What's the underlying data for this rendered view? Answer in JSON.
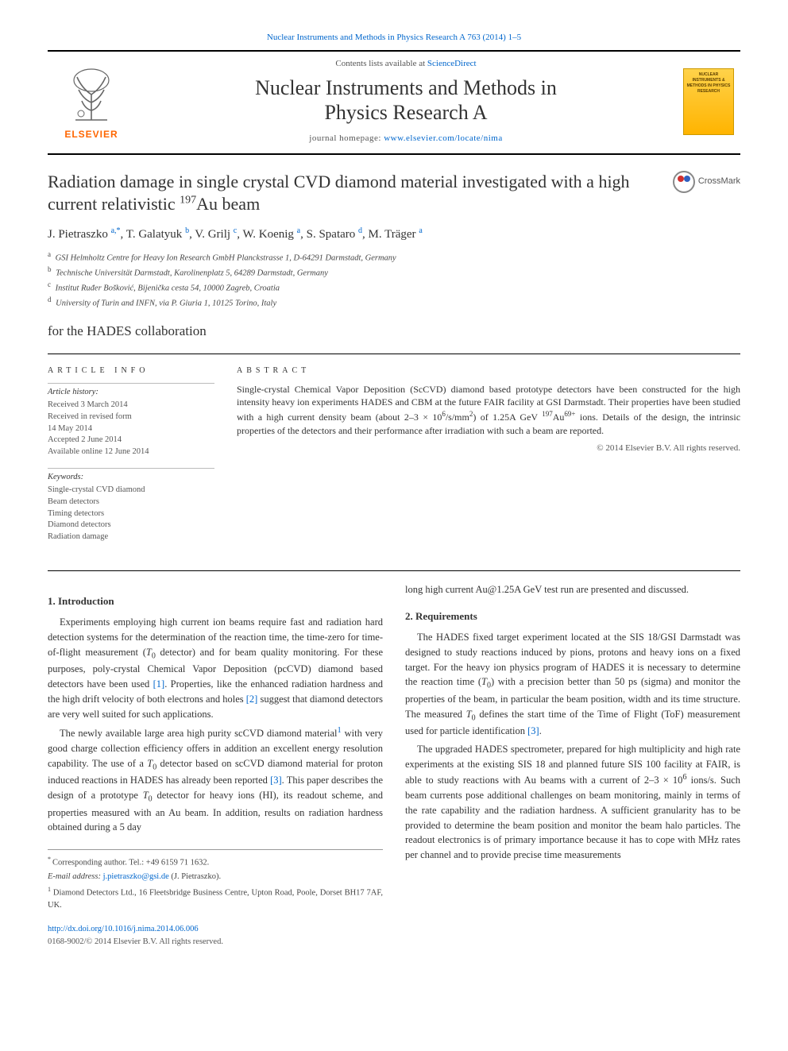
{
  "colors": {
    "link": "#0066cc",
    "text": "#333333",
    "muted": "#555555",
    "rule": "#000000",
    "elsevier_orange": "#ff6600",
    "cover_bg_top": "#ffd24a",
    "cover_bg_bottom": "#ffb400",
    "cover_border": "#cc9900"
  },
  "top_link": {
    "prefix": "",
    "journal": "Nuclear Instruments and Methods in Physics Research A 763 (2014) 1–5"
  },
  "masthead": {
    "contents_prefix": "Contents lists available at ",
    "contents_link": "ScienceDirect",
    "journal_title_line1": "Nuclear Instruments and Methods in",
    "journal_title_line2": "Physics Research A",
    "homepage_prefix": "journal homepage: ",
    "homepage_url": "www.elsevier.com/locate/nima",
    "publisher_word": "ELSEVIER",
    "cover_text": "NUCLEAR INSTRUMENTS & METHODS IN PHYSICS RESEARCH"
  },
  "article": {
    "title_a": "Radiation damage in single crystal CVD diamond material investigated with a high current relativistic ",
    "title_iso": "197",
    "title_b": "Au beam",
    "crossmark": "CrossMark"
  },
  "authors": {
    "line_html_parts": [
      {
        "name": "J. Pietraszko",
        "aff": "a,",
        "star": "*"
      },
      {
        "name": "T. Galatyuk",
        "aff": "b"
      },
      {
        "name": "V. Grilj",
        "aff": "c"
      },
      {
        "name": "W. Koenig",
        "aff": "a"
      },
      {
        "name": "S. Spataro",
        "aff": "d"
      },
      {
        "name": "M. Träger",
        "aff": "a"
      }
    ]
  },
  "affiliations": [
    {
      "key": "a",
      "text": "GSI Helmholtz Centre for Heavy Ion Research GmbH Planckstrasse 1, D-64291 Darmstadt, Germany"
    },
    {
      "key": "b",
      "text": "Technische Universität Darmstadt, Karolinenplatz 5, 64289 Darmstadt, Germany"
    },
    {
      "key": "c",
      "text": "Institut Ruđer Bošković, Bijenička cesta 54, 10000 Zagreb, Croatia"
    },
    {
      "key": "d",
      "text": "University of Turin and INFN, via P. Giuria 1, 10125 Torino, Italy"
    }
  ],
  "collaboration": "for the HADES collaboration",
  "info": {
    "heading": "ARTICLE INFO",
    "history_head": "Article history:",
    "history": [
      "Received 3 March 2014",
      "Received in revised form",
      "14 May 2014",
      "Accepted 2 June 2014",
      "Available online 12 June 2014"
    ],
    "keywords_head": "Keywords:",
    "keywords": [
      "Single-crystal CVD diamond",
      "Beam detectors",
      "Timing detectors",
      "Diamond detectors",
      "Radiation damage"
    ]
  },
  "abstract": {
    "heading": "ABSTRACT",
    "text_a": "Single-crystal Chemical Vapor Deposition (ScCVD) diamond based prototype detectors have been constructed for the high intensity heavy ion experiments HADES and CBM at the future FAIR facility at GSI Darmstadt. Their properties have been studied with a high current density beam (about 2–3 × 10",
    "text_sup1": "6",
    "text_b": "/s/mm",
    "text_sup2": "2",
    "text_c": ") of 1.25A GeV ",
    "text_sup3": "197",
    "text_d": "Au",
    "text_sup4": "69+",
    "text_e": " ions. Details of the design, the intrinsic properties of the detectors and their performance after irradiation with such a beam are reported.",
    "copyright": "© 2014 Elsevier B.V. All rights reserved."
  },
  "body": {
    "sec1_head": "1.  Introduction",
    "sec1_p1_a": "Experiments employing high current ion beams require fast and radiation hard detection systems for the determination of the reaction time, the time-zero for time-of-flight measurement (",
    "sec1_p1_T0": "T",
    "sec1_p1_b": " detector) and for beam quality monitoring. For these purposes, poly-crystal Chemical Vapor Deposition (pcCVD) diamond based detectors have been used ",
    "sec1_p1_cite1": "[1]",
    "sec1_p1_c": ". Properties, like the enhanced radiation hardness and the high drift velocity of both electrons and holes ",
    "sec1_p1_cite2": "[2]",
    "sec1_p1_d": " suggest that diamond detectors are very well suited for such applications.",
    "sec1_p2_a": "The newly available large area high purity scCVD diamond material",
    "sec1_p2_fn": "1",
    "sec1_p2_b": " with very good charge collection efficiency offers in addition an excellent energy resolution capability. The use of a ",
    "sec1_p2_c": " detector based on scCVD diamond material for proton induced reactions in HADES has already been reported ",
    "sec1_p2_cite3": "[3]",
    "sec1_p2_d": ". This paper describes the design of a prototype ",
    "sec1_p2_e": " detector for heavy ions (HI), its readout scheme, and properties measured with an Au beam. In addition, results on radiation hardness obtained during a 5 day",
    "sec1_cont": "long high current Au@1.25A GeV test run are presented and discussed.",
    "sec2_head": "2.  Requirements",
    "sec2_p1_a": "The HADES fixed target experiment located at the SIS 18/GSI Darmstadt was designed to study reactions induced by pions, protons and heavy ions on a fixed target. For the heavy ion physics program of HADES it is necessary to determine the reaction time (",
    "sec2_p1_b": ") with a precision better than 50 ps (sigma) and monitor the properties of the beam, in particular the beam position, width and its time structure. The measured ",
    "sec2_p1_c": " defines the start time of the Time of Flight (ToF) measurement used for particle identification ",
    "sec2_p1_cite3b": "[3]",
    "sec2_p1_d": ".",
    "sec2_p2_a": "The upgraded HADES spectrometer, prepared for high multiplicity and high rate experiments at the existing SIS 18 and planned future SIS 100 facility at FAIR, is able to study reactions with Au beams with a current of 2–3 × 10",
    "sec2_p2_sup": "6",
    "sec2_p2_b": " ions/s. Such beam currents pose additional challenges on beam monitoring, mainly in terms of the rate capability and the radiation hardness. A sufficient granularity has to be provided to determine the beam position and monitor the beam halo particles. The readout electronics is of primary importance because it has to cope with MHz rates per channel and to provide precise time measurements"
  },
  "footnotes": {
    "corr_label": "* ",
    "corr_text": "Corresponding author. Tel.: +49 6159 71 1632.",
    "email_label": "E-mail address: ",
    "email": "j.pietraszko@gsi.de",
    "email_tail": " (J. Pietraszko).",
    "fn1_label": "1",
    "fn1_text": " Diamond Detectors Ltd., 16 Fleetsbridge Business Centre, Upton Road, Poole, Dorset BH17 7AF, UK."
  },
  "doi": {
    "url": "http://dx.doi.org/10.1016/j.nima.2014.06.006",
    "issn_copy": "0168-9002/© 2014 Elsevier B.V. All rights reserved."
  }
}
